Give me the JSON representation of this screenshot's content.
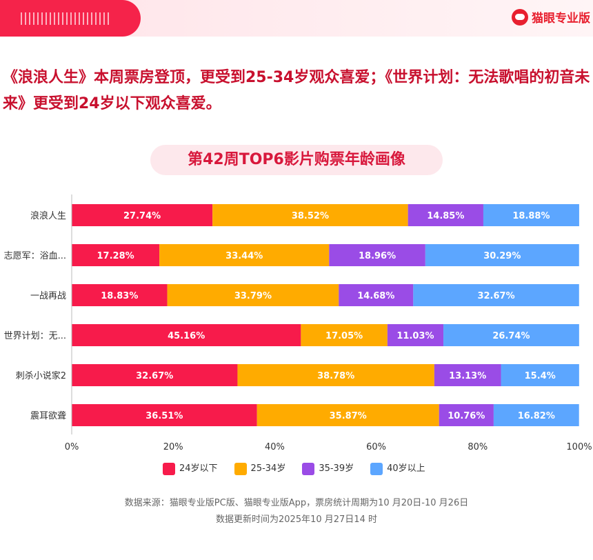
{
  "brand": {
    "name": "猫眼专业版",
    "icon": "cat-logo-icon"
  },
  "headline": "《浪浪人生》本周票房登顶，更受到25-34岁观众喜爱；《世界计划：无法歌唱的初音未来》更受到24岁以下观众喜爱。",
  "chart_data": {
    "type": "bar",
    "orientation": "horizontal-stacked-100",
    "title": "第42周TOP6影片购票年龄画像",
    "categories": [
      "浪浪人生",
      "志愿军：浴血...",
      "一战再战",
      "世界计划：无...",
      "刺杀小说家2",
      "震耳欲聋"
    ],
    "series": [
      {
        "name": "24岁以下",
        "color": "#f71b4b",
        "values": [
          27.74,
          17.28,
          18.83,
          45.16,
          32.67,
          36.51
        ]
      },
      {
        "name": "25-34岁",
        "color": "#ffab00",
        "values": [
          38.52,
          33.44,
          33.79,
          17.05,
          38.78,
          35.87
        ]
      },
      {
        "name": "35-39岁",
        "color": "#9a4ce6",
        "values": [
          14.85,
          18.96,
          14.68,
          11.03,
          13.13,
          10.76
        ]
      },
      {
        "name": "40岁以上",
        "color": "#5ca6ff",
        "values": [
          18.88,
          30.29,
          32.67,
          26.74,
          15.4,
          16.82
        ]
      }
    ],
    "xticks": [
      "0%",
      "20%",
      "40%",
      "60%",
      "80%",
      "100%"
    ],
    "xlim": [
      0,
      100
    ],
    "legend": "bottom"
  },
  "footer": {
    "source": "数据来源：猫眼专业版PC版、猫眼专业版App，票房统计周期为10 月20日-10 月26日",
    "updated": "数据更新时间为2025年10 月27日14 时"
  }
}
